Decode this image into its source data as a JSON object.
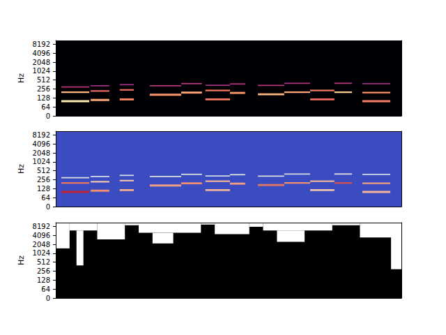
{
  "chart_data": [
    {
      "type": "heatmap",
      "y_label": "Hz",
      "color": "magma",
      "log": "y",
      "grid": false,
      "tick_labels": "y",
      "xlim": [
        0,
        100
      ],
      "ylim": [
        0,
        11025
      ],
      "yticks": [
        0,
        64,
        128,
        256,
        512,
        1024,
        2048,
        4096,
        8192
      ],
      "color_range": [
        -80,
        0
      ],
      "cells": [
        [
          0,
          100,
          0,
          11025,
          -80
        ],
        [
          1.6,
          9.7,
          92,
          108,
          -3
        ],
        [
          1.6,
          9.7,
          188,
          212,
          -12
        ],
        [
          1.6,
          9.7,
          285,
          315,
          -40
        ],
        [
          10.1,
          15.5,
          101,
          119,
          -15
        ],
        [
          10.1,
          15.5,
          207,
          233,
          -25
        ],
        [
          10.1,
          15.5,
          314,
          346,
          -45
        ],
        [
          18.5,
          22.6,
          106,
          124,
          -20
        ],
        [
          18.5,
          22.6,
          226,
          254,
          -25
        ],
        [
          18.5,
          22.6,
          342,
          378,
          -45
        ],
        [
          27.2,
          36.3,
          152,
          178,
          -18
        ],
        [
          27.2,
          36.3,
          314,
          346,
          -40
        ],
        [
          36.3,
          42.3,
          180,
          210,
          -15
        ],
        [
          36.3,
          42.3,
          371,
          409,
          -40
        ],
        [
          43.3,
          50.4,
          106,
          124,
          -22
        ],
        [
          43.3,
          50.4,
          216,
          244,
          -22
        ],
        [
          43.3,
          50.4,
          328,
          362,
          -45
        ],
        [
          50.4,
          54.8,
          175,
          205,
          -18
        ],
        [
          50.4,
          54.8,
          361,
          399,
          -42
        ],
        [
          58.5,
          66.1,
          157,
          183,
          -12
        ],
        [
          58.5,
          66.1,
          323,
          357,
          -40
        ],
        [
          66.1,
          73.6,
          188,
          212,
          -15
        ],
        [
          66.1,
          73.6,
          380,
          420,
          -42
        ],
        [
          73.6,
          80.6,
          106,
          124,
          -25
        ],
        [
          73.6,
          80.6,
          216,
          244,
          -22
        ],
        [
          80.6,
          85.7,
          188,
          212,
          -8
        ],
        [
          80.6,
          85.7,
          380,
          420,
          -40
        ],
        [
          88.7,
          96.8,
          92,
          108,
          -22
        ],
        [
          88.7,
          96.8,
          183,
          207,
          -18
        ],
        [
          88.7,
          96.8,
          371,
          409,
          -45
        ]
      ]
    },
    {
      "type": "heatmap",
      "y_label": "Hz",
      "color": "coolwarm",
      "log": "y",
      "grid": false,
      "tick_labels": "y",
      "xlim": [
        0,
        100
      ],
      "ylim": [
        0,
        11025
      ],
      "yticks": [
        0,
        64,
        128,
        256,
        512,
        1024,
        2048,
        4096,
        8192
      ],
      "color_range": [
        -80,
        0
      ],
      "cells": [
        [
          0,
          100,
          0,
          11025,
          -80
        ],
        [
          1.6,
          9.7,
          92,
          108,
          -3
        ],
        [
          1.6,
          9.7,
          188,
          212,
          -12
        ],
        [
          1.6,
          9.7,
          285,
          315,
          -40
        ],
        [
          10.1,
          15.5,
          101,
          119,
          -15
        ],
        [
          10.1,
          15.5,
          207,
          233,
          -25
        ],
        [
          10.1,
          15.5,
          314,
          346,
          -45
        ],
        [
          18.5,
          22.6,
          106,
          124,
          -20
        ],
        [
          18.5,
          22.6,
          226,
          254,
          -25
        ],
        [
          18.5,
          22.6,
          342,
          378,
          -45
        ],
        [
          27.2,
          36.3,
          152,
          178,
          -18
        ],
        [
          27.2,
          36.3,
          314,
          346,
          -40
        ],
        [
          36.3,
          42.3,
          180,
          210,
          -15
        ],
        [
          36.3,
          42.3,
          371,
          409,
          -40
        ],
        [
          43.3,
          50.4,
          106,
          124,
          -22
        ],
        [
          43.3,
          50.4,
          216,
          244,
          -22
        ],
        [
          43.3,
          50.4,
          328,
          362,
          -45
        ],
        [
          50.4,
          54.8,
          175,
          205,
          -18
        ],
        [
          50.4,
          54.8,
          361,
          399,
          -42
        ],
        [
          58.5,
          66.1,
          157,
          183,
          -12
        ],
        [
          58.5,
          66.1,
          323,
          357,
          -40
        ],
        [
          66.1,
          73.6,
          188,
          212,
          -15
        ],
        [
          66.1,
          73.6,
          380,
          420,
          -42
        ],
        [
          73.6,
          80.6,
          106,
          124,
          -25
        ],
        [
          73.6,
          80.6,
          216,
          244,
          -22
        ],
        [
          80.6,
          85.7,
          188,
          212,
          -8
        ],
        [
          80.6,
          85.7,
          380,
          420,
          -40
        ],
        [
          88.7,
          96.8,
          92,
          108,
          -22
        ],
        [
          88.7,
          96.8,
          183,
          207,
          -18
        ],
        [
          88.7,
          96.8,
          371,
          409,
          -45
        ]
      ]
    },
    {
      "type": "heatmap",
      "y_label": "Hz",
      "color": "binary",
      "log": "y",
      "grid": false,
      "tick_labels": "y",
      "xlim": [
        0,
        100
      ],
      "ylim": [
        0,
        11025
      ],
      "yticks": [
        0,
        64,
        128,
        256,
        512,
        1024,
        2048,
        4096,
        8192
      ],
      "color_range": [
        0,
        1
      ],
      "cells": [
        [
          0,
          100,
          0,
          11025,
          1
        ],
        [
          0,
          4,
          1500,
          11025,
          0
        ],
        [
          4,
          12,
          6000,
          11025,
          0
        ],
        [
          6,
          8,
          400,
          6000,
          0
        ],
        [
          12,
          20,
          3000,
          11025,
          0
        ],
        [
          20,
          24,
          9000,
          11025,
          0
        ],
        [
          24,
          42,
          5000,
          11025,
          0
        ],
        [
          28,
          34,
          2200,
          5000,
          0
        ],
        [
          42,
          46,
          9500,
          11025,
          0
        ],
        [
          46,
          56,
          4500,
          11025,
          0
        ],
        [
          56,
          60,
          8000,
          11025,
          0
        ],
        [
          60,
          80,
          6000,
          11025,
          0
        ],
        [
          64,
          72,
          2500,
          6000,
          0
        ],
        [
          80,
          88,
          9000,
          11025,
          0
        ],
        [
          88,
          98,
          3500,
          11025,
          0
        ],
        [
          97,
          100,
          300,
          11025,
          0
        ]
      ]
    }
  ]
}
